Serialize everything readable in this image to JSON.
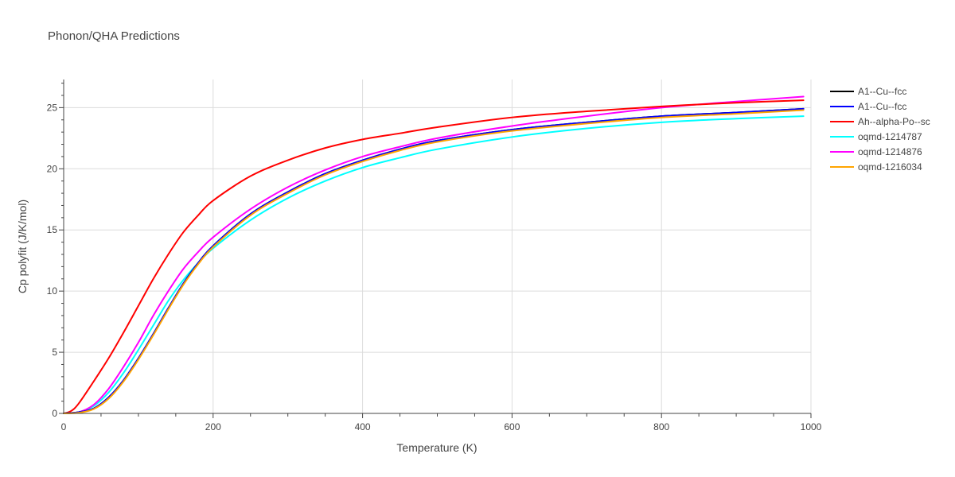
{
  "chart_data": {
    "type": "line",
    "title": "Phonon/QHA Predictions",
    "xlabel": "Temperature (K)",
    "ylabel": "Cp polyfit (J/K/mol)",
    "xlim": [
      0,
      1000
    ],
    "ylim": [
      0,
      27.3
    ],
    "xticks": [
      0,
      200,
      400,
      600,
      800,
      1000
    ],
    "yticks": [
      0,
      5,
      10,
      15,
      20,
      25
    ],
    "grid": true,
    "legend_position": "top-right",
    "series": [
      {
        "name": "A1--Cu--fcc",
        "color": "#000000",
        "x": [
          0,
          20,
          40,
          60,
          80,
          100,
          120,
          140,
          160,
          180,
          200,
          250,
          300,
          350,
          400,
          450,
          500,
          600,
          700,
          800,
          900,
          990
        ],
        "y": [
          0,
          0.1,
          0.4,
          1.3,
          2.7,
          4.5,
          6.5,
          8.6,
          10.6,
          12.3,
          13.7,
          16.3,
          18.1,
          19.6,
          20.7,
          21.6,
          22.3,
          23.2,
          23.8,
          24.3,
          24.6,
          24.9
        ]
      },
      {
        "name": "A1--Cu--fcc",
        "color": "#0000ff",
        "x": [
          0,
          20,
          40,
          60,
          80,
          100,
          120,
          140,
          160,
          180,
          200,
          250,
          300,
          350,
          400,
          450,
          500,
          600,
          700,
          800,
          900,
          990
        ],
        "y": [
          0,
          0.1,
          0.4,
          1.3,
          2.7,
          4.5,
          6.5,
          8.6,
          10.6,
          12.3,
          13.7,
          16.3,
          18.1,
          19.6,
          20.7,
          21.6,
          22.3,
          23.2,
          23.8,
          24.3,
          24.6,
          24.9
        ]
      },
      {
        "name": "Ah--alpha-Po--sc",
        "color": "#ff0000",
        "x": [
          0,
          10,
          20,
          40,
          60,
          80,
          100,
          120,
          140,
          160,
          180,
          200,
          250,
          300,
          350,
          400,
          450,
          500,
          600,
          700,
          800,
          900,
          990
        ],
        "y": [
          0,
          0.2,
          0.8,
          2.6,
          4.5,
          6.6,
          8.8,
          11,
          13,
          14.8,
          16.2,
          17.4,
          19.4,
          20.7,
          21.7,
          22.4,
          22.9,
          23.4,
          24.2,
          24.7,
          25.1,
          25.4,
          25.6
        ]
      },
      {
        "name": "oqmd-1214787",
        "color": "#00ffff",
        "x": [
          0,
          20,
          40,
          60,
          80,
          100,
          120,
          140,
          160,
          180,
          200,
          250,
          300,
          350,
          400,
          450,
          500,
          600,
          700,
          800,
          900,
          990
        ],
        "y": [
          0,
          0.1,
          0.6,
          1.7,
          3.3,
          5.2,
          7.2,
          9.2,
          10.9,
          12.3,
          13.5,
          15.8,
          17.6,
          19.0,
          20.1,
          20.9,
          21.6,
          22.6,
          23.3,
          23.8,
          24.1,
          24.3
        ]
      },
      {
        "name": "oqmd-1214876",
        "color": "#ff00ff",
        "x": [
          0,
          20,
          40,
          60,
          80,
          100,
          120,
          140,
          160,
          180,
          200,
          250,
          300,
          350,
          400,
          450,
          500,
          600,
          700,
          800,
          900,
          990
        ],
        "y": [
          0,
          0.1,
          0.7,
          2.0,
          3.8,
          5.8,
          8.0,
          10.0,
          11.8,
          13.2,
          14.4,
          16.7,
          18.5,
          19.9,
          21.0,
          21.8,
          22.5,
          23.5,
          24.3,
          25.0,
          25.5,
          25.9
        ]
      },
      {
        "name": "oqmd-1216034",
        "color": "#ffa500",
        "x": [
          0,
          20,
          40,
          60,
          80,
          100,
          120,
          140,
          160,
          180,
          200,
          250,
          300,
          350,
          400,
          450,
          500,
          600,
          700,
          800,
          900,
          990
        ],
        "y": [
          0,
          0.05,
          0.35,
          1.2,
          2.6,
          4.4,
          6.4,
          8.5,
          10.5,
          12.2,
          13.6,
          16.2,
          18.0,
          19.5,
          20.6,
          21.5,
          22.2,
          23.1,
          23.7,
          24.2,
          24.5,
          24.8
        ]
      }
    ]
  }
}
